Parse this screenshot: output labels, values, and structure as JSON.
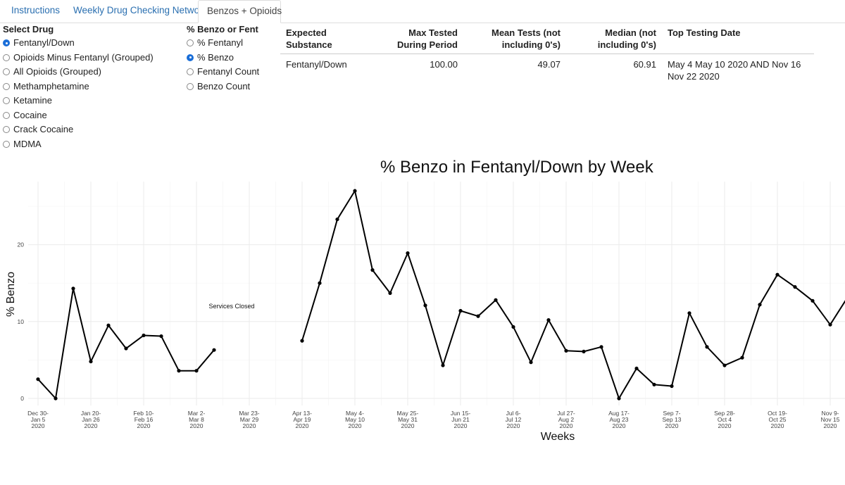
{
  "tabs": [
    {
      "label": "Instructions",
      "active": false
    },
    {
      "label": "Weekly Drug Checking Network",
      "active": false
    },
    {
      "label": "Benzos + Opioids",
      "active": true
    }
  ],
  "select_drug": {
    "title": "Select Drug",
    "options": [
      {
        "label": "Fentanyl/Down",
        "selected": true
      },
      {
        "label": "Opioids Minus Fentanyl (Grouped)",
        "selected": false
      },
      {
        "label": "All Opioids (Grouped)",
        "selected": false
      },
      {
        "label": "Methamphetamine",
        "selected": false
      },
      {
        "label": "Ketamine",
        "selected": false
      },
      {
        "label": "Cocaine",
        "selected": false
      },
      {
        "label": "Crack Cocaine",
        "selected": false
      },
      {
        "label": "MDMA",
        "selected": false
      }
    ]
  },
  "metric": {
    "title": "% Benzo or Fent",
    "options": [
      {
        "label": "% Fentanyl",
        "selected": false
      },
      {
        "label": "% Benzo",
        "selected": true
      },
      {
        "label": "Fentanyl Count",
        "selected": false
      },
      {
        "label": "Benzo Count",
        "selected": false
      }
    ]
  },
  "summary_table": {
    "headers": [
      "Expected Substance",
      "Max Tested During Period",
      "Mean Tests (not including 0's)",
      "Median (not including 0's)",
      "Top Testing Date"
    ],
    "rows": [
      [
        "Fentanyl/Down",
        "100.00",
        "49.07",
        "60.91",
        "May 4 May 10 2020 AND Nov 16 Nov 22 2020"
      ]
    ]
  },
  "colors": {
    "accent": "#1a6ed8",
    "link": "#2a6fb0",
    "line": "#000000",
    "grid": "#ebebeb"
  },
  "chart_data": {
    "type": "line",
    "title": "% Benzo in Fentanyl/Down by Week",
    "xlabel": "Weeks",
    "ylabel": "% Benzo",
    "ylim": [
      0,
      27
    ],
    "yticks": [
      0,
      10,
      20
    ],
    "grid": true,
    "legend": "none",
    "annotation": {
      "text": "Services Closed",
      "x_week": 11,
      "y": 12
    },
    "xticks": [
      {
        "week": 0,
        "label": [
          "Dec 30-",
          "Jan 5",
          "2020"
        ]
      },
      {
        "week": 3,
        "label": [
          "Jan 20-",
          "Jan 26",
          "2020"
        ]
      },
      {
        "week": 6,
        "label": [
          "Feb 10-",
          "Feb 16",
          "2020"
        ]
      },
      {
        "week": 9,
        "label": [
          "Mar 2-",
          "Mar 8",
          "2020"
        ]
      },
      {
        "week": 12,
        "label": [
          "Mar 23-",
          "Mar 29",
          "2020"
        ]
      },
      {
        "week": 15,
        "label": [
          "Apr 13-",
          "Apr 19",
          "2020"
        ]
      },
      {
        "week": 18,
        "label": [
          "May 4-",
          "May 10",
          "2020"
        ]
      },
      {
        "week": 21,
        "label": [
          "May 25-",
          "May 31",
          "2020"
        ]
      },
      {
        "week": 24,
        "label": [
          "Jun 15-",
          "Jun 21",
          "2020"
        ]
      },
      {
        "week": 27,
        "label": [
          "Jul 6-",
          "Jul 12",
          "2020"
        ]
      },
      {
        "week": 30,
        "label": [
          "Jul 27-",
          "Aug 2",
          "2020"
        ]
      },
      {
        "week": 33,
        "label": [
          "Aug 17-",
          "Aug 23",
          "2020"
        ]
      },
      {
        "week": 36,
        "label": [
          "Sep 7-",
          "Sep 13",
          "2020"
        ]
      },
      {
        "week": 39,
        "label": [
          "Sep 28-",
          "Oct 4",
          "2020"
        ]
      },
      {
        "week": 42,
        "label": [
          "Oct 19-",
          "Oct 25",
          "2020"
        ]
      },
      {
        "week": 45,
        "label": [
          "Nov 9-",
          "Nov 15",
          "2020"
        ]
      }
    ],
    "series": [
      {
        "segments": [
          [
            [
              0,
              2.5
            ],
            [
              1,
              0.0
            ],
            [
              2,
              14.3
            ],
            [
              3,
              4.8
            ],
            [
              4,
              9.5
            ],
            [
              5,
              6.5
            ],
            [
              6,
              8.2
            ],
            [
              7,
              8.1
            ],
            [
              8,
              3.6
            ],
            [
              9,
              3.6
            ],
            [
              10,
              6.3
            ]
          ],
          [
            [
              15,
              7.5
            ],
            [
              16,
              15.0
            ],
            [
              17,
              23.3
            ],
            [
              18,
              27.0
            ],
            [
              19,
              16.7
            ],
            [
              20,
              13.7
            ],
            [
              21,
              18.9
            ],
            [
              22,
              12.1
            ],
            [
              23,
              4.3
            ],
            [
              24,
              11.4
            ],
            [
              25,
              10.7
            ],
            [
              26,
              12.8
            ],
            [
              27,
              9.3
            ],
            [
              28,
              4.7
            ],
            [
              29,
              10.2
            ],
            [
              30,
              6.2
            ],
            [
              31,
              6.1
            ],
            [
              32,
              6.7
            ],
            [
              33,
              0.0
            ],
            [
              34,
              3.9
            ],
            [
              35,
              1.8
            ],
            [
              36,
              1.6
            ],
            [
              37,
              11.1
            ],
            [
              38,
              6.7
            ],
            [
              39,
              4.3
            ],
            [
              40,
              5.3
            ],
            [
              41,
              12.2
            ],
            [
              42,
              16.1
            ],
            [
              43,
              14.5
            ],
            [
              44,
              12.7
            ],
            [
              45,
              9.6
            ],
            [
              46,
              13.2
            ]
          ]
        ]
      }
    ]
  }
}
